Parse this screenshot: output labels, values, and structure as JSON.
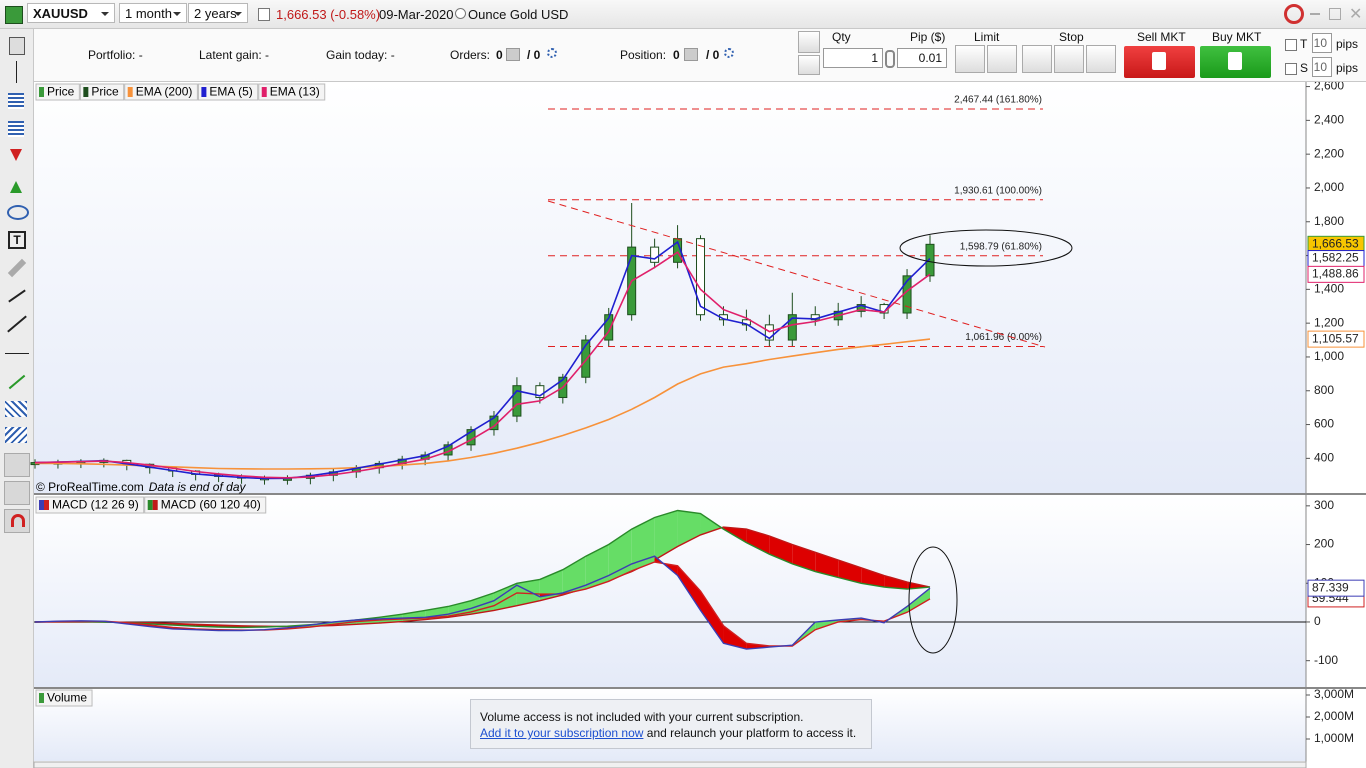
{
  "toolbar": {
    "symbol": "XAUUSD",
    "period": "1 month",
    "range": "2 years",
    "quote": "1,666.53 (-0.58%)",
    "date": "09-Mar-2020",
    "description": "Ounce Gold USD"
  },
  "order_bar": {
    "portfolio": "Portfolio: -",
    "latent_gain": "Latent gain: -",
    "gain_today": "Gain today: -",
    "orders_label": "Orders:",
    "orders_count": "0",
    "orders_pending": "/ 0",
    "position_label": "Position:",
    "position_count": "0",
    "position_pending": "/ 0",
    "qty_label": "Qty",
    "qty": "1",
    "pip_label": "Pip ($)",
    "pip": "0.01",
    "limit": "Limit",
    "stop": "Stop",
    "sell": "Sell MKT",
    "buy": "Buy MKT",
    "t_label": "T",
    "t_pips": "10",
    "s_label": "S",
    "s_pips": "10",
    "pips_unit": "pips"
  },
  "chart_data": [
    {
      "type": "candlestick",
      "copyright": "© ProRealTime.com",
      "note": "Data is end of day",
      "categories": [
        null,
        null,
        null,
        null,
        null,
        null,
        null,
        null,
        null,
        null,
        null,
        null,
        null,
        null,
        null,
        null,
        null,
        null,
        null,
        null,
        null,
        null,
        null,
        null,
        null,
        null,
        null,
        null,
        null,
        null,
        null,
        null,
        null,
        null,
        null,
        null,
        null,
        null,
        null,
        null
      ],
      "ylim": [
        195,
        2627
      ],
      "yticks": [
        400,
        600,
        800,
        {
          "value": 1000,
          "label": "1,000"
        },
        {
          "value": 1200,
          "label": "1,200"
        },
        {
          "value": 1400,
          "label": "1,400"
        },
        {
          "value": 1600,
          "label": "1,600"
        },
        {
          "value": 1800,
          "label": "1,800"
        },
        {
          "value": 2000,
          "label": "2,000"
        },
        {
          "value": 2200,
          "label": "2,200"
        },
        {
          "value": 2400,
          "label": "2,400"
        },
        {
          "value": 2600,
          "label": "2,600"
        }
      ],
      "series": [
        {
          "name": "Price",
          "style": "candle",
          "color": "#3a9a3a",
          "badge_color": "#f7c600",
          "last_label": "1,666.53",
          "values": [
            375,
            378,
            382,
            388,
            365,
            345,
            325,
            305,
            295,
            285,
            280,
            282,
            300,
            320,
            345,
            370,
            395,
            420,
            480,
            570,
            650,
            830,
            760,
            880,
            1100,
            1250,
            1650,
            1560,
            1700,
            1250,
            1220,
            1190,
            1100,
            1250,
            1220,
            1270,
            1310,
            1260,
            1480,
            1666.53
          ]
        },
        {
          "name": "Price",
          "style": "wick",
          "color": "#1d4d1d",
          "values": [
            395,
            392,
            395,
            400,
            392,
            370,
            350,
            330,
            315,
            305,
            298,
            300,
            315,
            338,
            360,
            385,
            415,
            440,
            500,
            590,
            680,
            880,
            850,
            900,
            1130,
            1290,
            1911,
            1700,
            1780,
            1720,
            1300,
            1280,
            1250,
            1380,
            1300,
            1320,
            1360,
            1320,
            1520,
            1720
          ]
        },
        {
          "name": "EMA (200)",
          "style": "line",
          "color": "#f7923a",
          "last_label": "1,105.57",
          "values": [
            370,
            370,
            368,
            365,
            360,
            355,
            350,
            345,
            340,
            338,
            337,
            337,
            338,
            340,
            345,
            352,
            360,
            370,
            385,
            405,
            430,
            460,
            495,
            535,
            580,
            630,
            690,
            760,
            840,
            900,
            940,
            960,
            985,
            1005,
            1025,
            1045,
            1060,
            1075,
            1090,
            1105.57
          ]
        },
        {
          "name": "EMA (5)",
          "style": "line",
          "color": "#1f1fd0",
          "last_label": "1,582.25",
          "values": [
            375,
            378,
            382,
            386,
            368,
            348,
            328,
            308,
            297,
            287,
            281,
            282,
            297,
            317,
            341,
            366,
            391,
            416,
            472,
            558,
            640,
            800,
            770,
            865,
            1070,
            1230,
            1600,
            1580,
            1680,
            1300,
            1225,
            1195,
            1110,
            1230,
            1225,
            1265,
            1305,
            1265,
            1450,
            1582.25
          ]
        },
        {
          "name": "EMA (13)",
          "style": "line",
          "color": "#e0206a",
          "last_label": "1,488.86",
          "values": [
            375,
            377,
            380,
            384,
            375,
            360,
            342,
            322,
            308,
            296,
            288,
            285,
            290,
            303,
            322,
            345,
            370,
            395,
            440,
            510,
            590,
            720,
            740,
            820,
            980,
            1150,
            1450,
            1530,
            1620,
            1400,
            1280,
            1230,
            1150,
            1190,
            1210,
            1245,
            1280,
            1265,
            1390,
            1488.86
          ]
        }
      ],
      "levels_color": "#e02020",
      "levels": [
        {
          "value": 2467.44,
          "label": "2,467.44 (161.80%)"
        },
        {
          "value": 1930.61,
          "label": "1,930.61 (100.00%)"
        },
        {
          "value": 1598.79,
          "label": "1,598.79 (61.80%)"
        },
        {
          "value": 1061.96,
          "label": "1,061.96 (0.00%)"
        }
      ]
    },
    {
      "type": "macd",
      "categories": [
        null,
        null,
        null,
        null,
        null,
        null,
        null,
        null,
        null,
        null,
        null,
        null,
        null,
        null,
        null,
        null,
        null,
        null,
        null,
        null,
        null,
        null,
        null,
        null,
        null,
        null,
        null,
        null,
        null,
        null,
        null,
        null,
        null,
        null,
        null,
        null,
        null,
        null,
        null,
        null
      ],
      "ylim": [
        -168,
        328
      ],
      "yticks": [
        -100,
        0,
        100,
        200,
        300
      ],
      "zero_line": true,
      "indicators": [
        {
          "name": "MACD (12 26 9)",
          "up_color": "#66dd66",
          "down_color": "#dd0000",
          "macd": {
            "color": "#3c3cb4",
            "last_label": "87.339",
            "values": [
              0,
              2,
              3,
              2,
              -5,
              -12,
              -18,
              -20,
              -22,
              -22,
              -20,
              -15,
              -8,
              0,
              5,
              8,
              10,
              12,
              20,
              35,
              55,
              95,
              65,
              75,
              95,
              120,
              150,
              170,
              120,
              30,
              -55,
              -70,
              -65,
              -60,
              0,
              5,
              10,
              -2,
              40,
              87.339
            ]
          },
          "signal": {
            "color": "#d02020",
            "last_label": "59.544",
            "values": [
              0,
              1,
              2,
              2,
              -2,
              -8,
              -14,
              -18,
              -20,
              -21,
              -21,
              -18,
              -13,
              -6,
              1,
              5,
              8,
              10,
              15,
              26,
              42,
              75,
              72,
              72,
              85,
              105,
              132,
              155,
              145,
              80,
              -10,
              -55,
              -62,
              -62,
              -20,
              0,
              6,
              2,
              25,
              59.544
            ]
          }
        },
        {
          "name": "MACD (60 120 40)",
          "up_color": "#66dd66",
          "down_color": "#dd0000",
          "macd": {
            "color": "#2a8a2a",
            "values": [
              0,
              1,
              1,
              0,
              -2,
              -5,
              -8,
              -11,
              -13,
              -14,
              -13,
              -11,
              -7,
              -2,
              5,
              12,
              20,
              30,
              40,
              55,
              75,
              100,
              110,
              135,
              170,
              200,
              240,
              270,
              288,
              280,
              240,
              205,
              175,
              150,
              130,
              115,
              100,
              90,
              85,
              90
            ]
          },
          "signal": {
            "color": "#c01818",
            "values": [
              0,
              0,
              0,
              0,
              -1,
              -2,
              -4,
              -6,
              -8,
              -10,
              -11,
              -12,
              -11,
              -9,
              -6,
              -3,
              1,
              6,
              12,
              20,
              30,
              42,
              55,
              70,
              88,
              108,
              130,
              160,
              195,
              225,
              245,
              240,
              222,
              200,
              180,
              160,
              140,
              120,
              103,
              90
            ]
          }
        }
      ]
    },
    {
      "type": "volume",
      "title": "Volume",
      "color": "#3a9a3a",
      "ylim": [
        0,
        3273
      ],
      "yticks": [
        {
          "value": 1000,
          "label": "1,000M"
        },
        {
          "value": 2000,
          "label": "2,000M"
        },
        {
          "value": 3000,
          "label": "3,000M"
        }
      ]
    }
  ],
  "notice": {
    "text": "Volume access is not included with your current subscription.",
    "link": "Add it to your subscription now",
    "rest": "and relaunch your platform to access it."
  }
}
